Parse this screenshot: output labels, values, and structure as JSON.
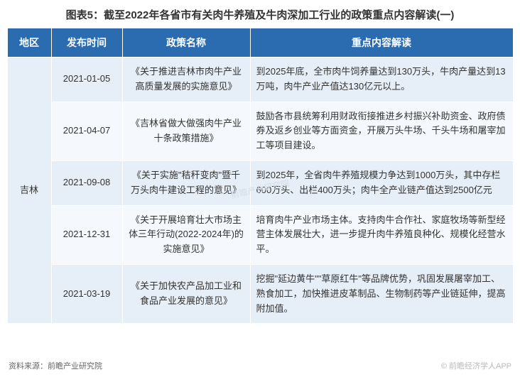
{
  "title": "图表5：截至2022年各省市有关肉牛养殖及牛肉深加工行业的政策重点内容解读(一)",
  "columns": {
    "region": "地区",
    "date": "发布时间",
    "policy": "政策名称",
    "content": "重点内容解读"
  },
  "region": "吉林",
  "rows": [
    {
      "date": "2021-01-05",
      "policy": "《关于推进吉林市肉牛产业高质量发展的实施意见》",
      "content": "到2025年底，全市肉牛饲养量达到130万头，牛肉产量达到13万吨，肉牛产业产值达130亿元以上。"
    },
    {
      "date": "2021-04-07",
      "policy": "《吉林省做大做强肉牛产业十条政策措施》",
      "content": "鼓励各市县统筹利用财政衔接推进乡村振兴补助资金、政府债券及返乡创业等方面资金，开展万头牛场、千头牛场和屠宰加工等项目建设。"
    },
    {
      "date": "2021-09-08",
      "policy": "《关于实施\"秸秆变肉\"暨千万头肉牛建设工程的意见》",
      "content": "到2025年，全省肉牛养殖规模力争达到1000万头，其中存栏600万头、出栏400万头；肉牛全产业链产值达到2500亿元"
    },
    {
      "date": "2021-12-31",
      "policy": "《关于开展培育壮大市场主体三年行动(2022-2024年)的实施意见》",
      "content": "培育肉牛产业市场主体。支持肉牛合作社、家庭牧场等新型经营主体发展壮大，进一步提升肉牛养殖良种化、规模化经营水平。"
    },
    {
      "date": "2021-03-19",
      "policy": "《关于加快农产品加工业和食品产业发展的意见》",
      "content": "挖掘\"延边黄牛\"\"草原红牛\"等品牌优势，巩固发展屠宰加工、熟食加工，加快推进皮革制品、生物制药等产业链延伸，提高附加值。"
    }
  ],
  "source": "资料来源：前瞻产业研究院",
  "watermark_center": "前瞻产业研究院",
  "watermark_br": "© 前瞻经济学人APP"
}
